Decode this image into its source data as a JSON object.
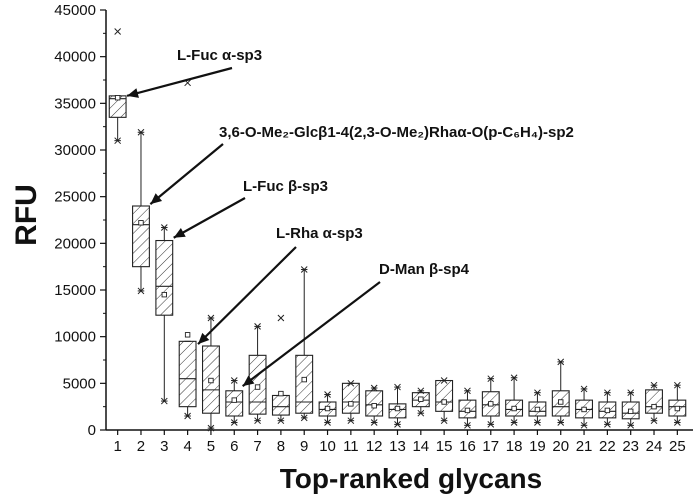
{
  "chart_data": {
    "type": "box",
    "xlabel": "Top-ranked glycans",
    "ylabel": "RFU",
    "ylim": [
      0,
      45000
    ],
    "yticks": [
      0,
      5000,
      10000,
      15000,
      20000,
      25000,
      30000,
      35000,
      40000,
      45000
    ],
    "categories": [
      "1",
      "2",
      "3",
      "4",
      "5",
      "6",
      "7",
      "8",
      "9",
      "10",
      "11",
      "12",
      "13",
      "14",
      "15",
      "16",
      "17",
      "18",
      "19",
      "20",
      "21",
      "22",
      "23",
      "24",
      "25"
    ],
    "boxes": [
      {
        "category": "1",
        "q1": 33500,
        "median": 35500,
        "q3": 35800,
        "mean": 35600,
        "whisker_low": 31000,
        "whisker_high": 35800,
        "min": 31000,
        "max": 42700
      },
      {
        "category": "2",
        "q1": 17500,
        "median": 22000,
        "q3": 24000,
        "mean": 22200,
        "whisker_low": 14900,
        "whisker_high": 31900,
        "min": 14900,
        "max": 31900
      },
      {
        "category": "3",
        "q1": 12300,
        "median": 15400,
        "q3": 20300,
        "mean": 14500,
        "whisker_low": 3100,
        "whisker_high": 21700,
        "min": 3100,
        "max": 21700
      },
      {
        "category": "4",
        "q1": 2500,
        "median": 5500,
        "q3": 9500,
        "mean": 10200,
        "whisker_low": 1500,
        "whisker_high": 9500,
        "min": 1500,
        "max": 37200
      },
      {
        "category": "5",
        "q1": 1800,
        "median": 4300,
        "q3": 9000,
        "mean": 5300,
        "whisker_low": 200,
        "whisker_high": 12000,
        "min": 200,
        "max": 12000
      },
      {
        "category": "6",
        "q1": 1500,
        "median": 3000,
        "q3": 4200,
        "mean": 3200,
        "whisker_low": 800,
        "whisker_high": 5300,
        "min": 800,
        "max": 5300
      },
      {
        "category": "7",
        "q1": 1700,
        "median": 3000,
        "q3": 8000,
        "mean": 4600,
        "whisker_low": 1000,
        "whisker_high": 11100,
        "min": 1000,
        "max": 11100
      },
      {
        "category": "8",
        "q1": 1600,
        "median": 2500,
        "q3": 3700,
        "mean": 3900,
        "whisker_low": 1000,
        "whisker_high": 3700,
        "min": 1000,
        "max": 12000
      },
      {
        "category": "9",
        "q1": 1800,
        "median": 3000,
        "q3": 8000,
        "mean": 5400,
        "whisker_low": 1300,
        "whisker_high": 17200,
        "min": 1300,
        "max": 17200
      },
      {
        "category": "10",
        "q1": 1500,
        "median": 2200,
        "q3": 3000,
        "mean": 2300,
        "whisker_low": 800,
        "whisker_high": 3800,
        "min": 800,
        "max": 3800
      },
      {
        "category": "11",
        "q1": 1800,
        "median": 3000,
        "q3": 5000,
        "mean": 2800,
        "whisker_low": 1000,
        "whisker_high": 5000,
        "min": 1000,
        "max": 5000
      },
      {
        "category": "12",
        "q1": 1500,
        "median": 2700,
        "q3": 4200,
        "mean": 2600,
        "whisker_low": 800,
        "whisker_high": 4500,
        "min": 800,
        "max": 4500
      },
      {
        "category": "13",
        "q1": 1300,
        "median": 2200,
        "q3": 2800,
        "mean": 2300,
        "whisker_low": 600,
        "whisker_high": 4600,
        "min": 600,
        "max": 4600
      },
      {
        "category": "14",
        "q1": 2500,
        "median": 3200,
        "q3": 4000,
        "mean": 3300,
        "whisker_low": 1800,
        "whisker_high": 4200,
        "min": 1800,
        "max": 4200
      },
      {
        "category": "15",
        "q1": 2000,
        "median": 3000,
        "q3": 5300,
        "mean": 3000,
        "whisker_low": 1000,
        "whisker_high": 5300,
        "min": 1000,
        "max": 5300
      },
      {
        "category": "16",
        "q1": 1300,
        "median": 2000,
        "q3": 3200,
        "mean": 2100,
        "whisker_low": 500,
        "whisker_high": 4200,
        "min": 500,
        "max": 4200
      },
      {
        "category": "17",
        "q1": 1500,
        "median": 2700,
        "q3": 4100,
        "mean": 2800,
        "whisker_low": 600,
        "whisker_high": 5500,
        "min": 600,
        "max": 5500
      },
      {
        "category": "18",
        "q1": 1500,
        "median": 2200,
        "q3": 3200,
        "mean": 2300,
        "whisker_low": 800,
        "whisker_high": 5600,
        "min": 800,
        "max": 5600
      },
      {
        "category": "19",
        "q1": 1500,
        "median": 2000,
        "q3": 3000,
        "mean": 2200,
        "whisker_low": 800,
        "whisker_high": 4000,
        "min": 800,
        "max": 4000
      },
      {
        "category": "20",
        "q1": 1500,
        "median": 2500,
        "q3": 4200,
        "mean": 3000,
        "whisker_low": 800,
        "whisker_high": 7300,
        "min": 800,
        "max": 7300
      },
      {
        "category": "21",
        "q1": 1300,
        "median": 2200,
        "q3": 3200,
        "mean": 2200,
        "whisker_low": 500,
        "whisker_high": 4400,
        "min": 500,
        "max": 4400
      },
      {
        "category": "22",
        "q1": 1300,
        "median": 2000,
        "q3": 3000,
        "mean": 2100,
        "whisker_low": 600,
        "whisker_high": 4000,
        "min": 600,
        "max": 4000
      },
      {
        "category": "23",
        "q1": 1200,
        "median": 1800,
        "q3": 3000,
        "mean": 2000,
        "whisker_low": 500,
        "whisker_high": 4000,
        "min": 500,
        "max": 4000
      },
      {
        "category": "24",
        "q1": 1800,
        "median": 2500,
        "q3": 4300,
        "mean": 2500,
        "whisker_low": 1000,
        "whisker_high": 4800,
        "min": 1000,
        "max": 4800
      },
      {
        "category": "25",
        "q1": 1500,
        "median": 2500,
        "q3": 3200,
        "mean": 2300,
        "whisker_low": 800,
        "whisker_high": 4800,
        "min": 800,
        "max": 4800
      }
    ],
    "annotations": [
      {
        "label": "L-Fuc α-sp3",
        "target": "1"
      },
      {
        "label": "3,6-O-Me₂-Glcβ1-4(2,3-O-Me₂)Rhaα-O(p-C₆H₄)-sp2",
        "target": "2"
      },
      {
        "label": "L-Fuc β-sp3",
        "target": "3"
      },
      {
        "label": "L-Rha α-sp3",
        "target": "4"
      },
      {
        "label": "D-Man β-sp4",
        "target": "6"
      }
    ]
  }
}
